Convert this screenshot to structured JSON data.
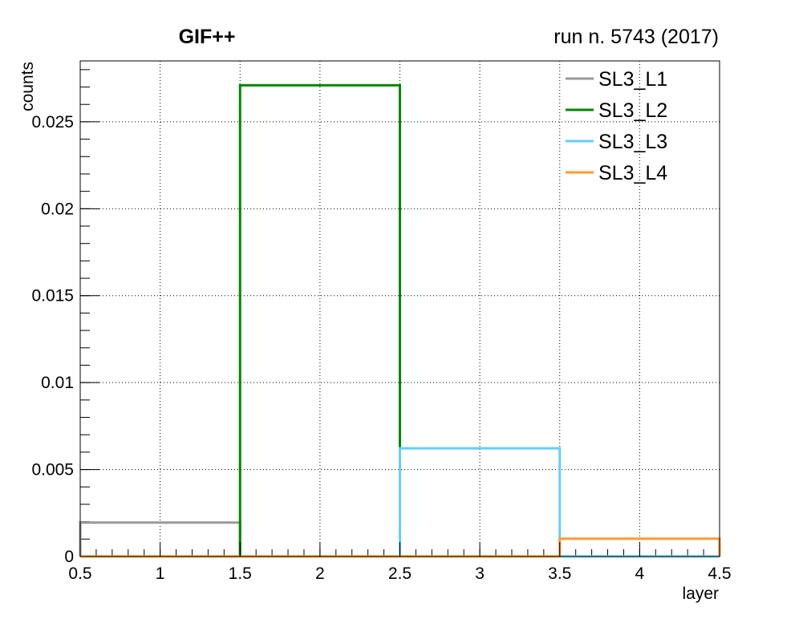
{
  "chart_data": {
    "type": "line",
    "title": "GIF++",
    "subtitle": "run n. 5743 (2017)",
    "xlabel": "layer",
    "ylabel": "counts",
    "xlim": [
      0.5,
      4.5
    ],
    "ylim": [
      0,
      0.0285
    ],
    "grid": true,
    "legend_position": "top-right",
    "x_ticks": [
      "0.5",
      "1",
      "1.5",
      "2",
      "2.5",
      "3",
      "3.5",
      "4",
      "4.5"
    ],
    "y_ticks": [
      "0",
      "0.005",
      "0.01",
      "0.015",
      "0.02",
      "0.025"
    ],
    "bin_edges": [
      0.5,
      1.5,
      2.5,
      3.5,
      4.5
    ],
    "series": [
      {
        "name": "SL3_L1",
        "color": "#999999",
        "values": [
          0.00195,
          0,
          0,
          0
        ]
      },
      {
        "name": "SL3_L2",
        "color": "#008800",
        "values": [
          0,
          0.0271,
          0,
          0
        ]
      },
      {
        "name": "SL3_L3",
        "color": "#66ccff",
        "values": [
          0,
          0,
          0.00622,
          0
        ]
      },
      {
        "name": "SL3_L4",
        "color": "#ff9933",
        "values": [
          0,
          0,
          0,
          0.00102
        ]
      }
    ]
  }
}
